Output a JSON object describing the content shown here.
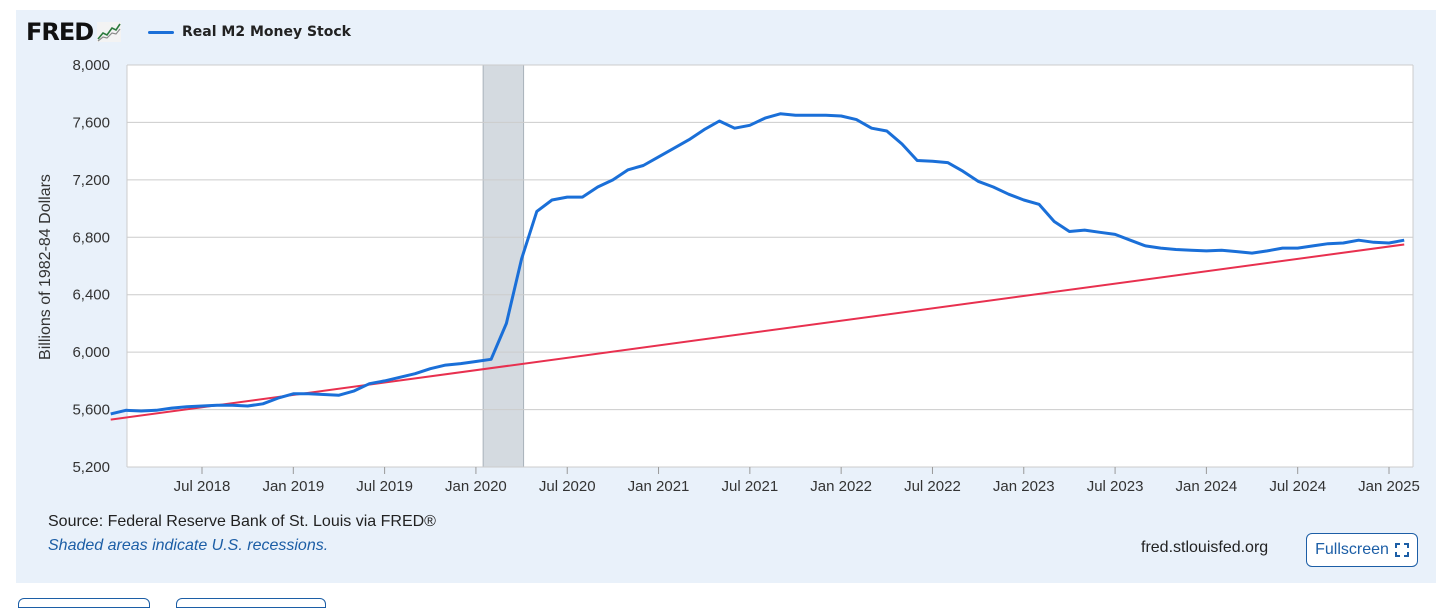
{
  "header": {
    "logo_text": "FRED",
    "legend_label": "Real M2 Money Stock"
  },
  "colors": {
    "series": "#1a6fd8",
    "trend": "#e8304f",
    "recession": "#d4dae0",
    "grid": "#cccccc",
    "panel": "#e9f1fa"
  },
  "footer": {
    "source": "Source: Federal Reserve Bank of St. Louis via FRED®",
    "note": "Shaded areas indicate U.S. recessions.",
    "site": "fred.stlouisfed.org",
    "fullscreen_label": "Fullscreen",
    "fullscreen_icon": "expand-icon"
  },
  "chart_data": {
    "type": "line",
    "ylabel": "Billions of 1982-84 Dollars",
    "ylim": [
      5200,
      8000
    ],
    "yticks": [
      5200,
      5600,
      6000,
      6400,
      6800,
      7200,
      7600,
      8000
    ],
    "ytick_labels": [
      "5,200",
      "5,600",
      "6,000",
      "6,400",
      "6,800",
      "7,200",
      "7,600",
      "8,000"
    ],
    "xlim": [
      "2018-01",
      "2025-02"
    ],
    "xticks": [
      "2018-07",
      "2019-01",
      "2019-07",
      "2020-01",
      "2020-07",
      "2021-01",
      "2021-07",
      "2022-01",
      "2022-07",
      "2023-01",
      "2023-07",
      "2024-01",
      "2024-07",
      "2025-01"
    ],
    "xtick_labels": [
      "Jul 2018",
      "Jan 2019",
      "Jul 2019",
      "Jan 2020",
      "Jul 2020",
      "Jan 2021",
      "Jul 2021",
      "Jan 2022",
      "Jul 2022",
      "Jan 2023",
      "Jul 2023",
      "Jan 2024",
      "Jul 2024",
      "Jan 2025"
    ],
    "grid": true,
    "recession": {
      "start": "2020-02",
      "end": "2020-04"
    },
    "trendline": {
      "start": {
        "x": "2018-01",
        "y": 5530
      },
      "end": {
        "x": "2025-02",
        "y": 6750
      }
    },
    "series": [
      {
        "x": [
          "2018-01",
          "2018-02",
          "2018-03",
          "2018-04",
          "2018-05",
          "2018-06",
          "2018-07",
          "2018-08",
          "2018-09",
          "2018-10",
          "2018-11",
          "2018-12",
          "2019-01",
          "2019-02",
          "2019-03",
          "2019-04",
          "2019-05",
          "2019-06",
          "2019-07",
          "2019-08",
          "2019-09",
          "2019-10",
          "2019-11",
          "2019-12",
          "2020-01",
          "2020-02",
          "2020-03",
          "2020-04",
          "2020-05",
          "2020-06",
          "2020-07",
          "2020-08",
          "2020-09",
          "2020-10",
          "2020-11",
          "2020-12",
          "2021-01",
          "2021-02",
          "2021-03",
          "2021-04",
          "2021-05",
          "2021-06",
          "2021-07",
          "2021-08",
          "2021-09",
          "2021-10",
          "2021-11",
          "2021-12",
          "2022-01",
          "2022-02",
          "2022-03",
          "2022-04",
          "2022-05",
          "2022-06",
          "2022-07",
          "2022-08",
          "2022-09",
          "2022-10",
          "2022-11",
          "2022-12",
          "2023-01",
          "2023-02",
          "2023-03",
          "2023-04",
          "2023-05",
          "2023-06",
          "2023-07",
          "2023-08",
          "2023-09",
          "2023-10",
          "2023-11",
          "2023-12",
          "2024-01",
          "2024-02",
          "2024-03",
          "2024-04",
          "2024-05",
          "2024-06",
          "2024-07",
          "2024-08",
          "2024-09",
          "2024-10",
          "2024-11",
          "2024-12",
          "2025-01",
          "2025-02"
        ],
        "values": [
          5570,
          5595,
          5590,
          5595,
          5610,
          5620,
          5625,
          5630,
          5630,
          5625,
          5640,
          5680,
          5710,
          5710,
          5705,
          5700,
          5730,
          5780,
          5800,
          5825,
          5850,
          5885,
          5910,
          5920,
          5935,
          5950,
          6200,
          6650,
          6980,
          7060,
          7080,
          7080,
          7150,
          7200,
          7270,
          7300,
          7360,
          7420,
          7480,
          7550,
          7610,
          7560,
          7580,
          7630,
          7660,
          7650,
          7650,
          7650,
          7645,
          7620,
          7560,
          7540,
          7450,
          7335,
          7330,
          7320,
          7260,
          7190,
          7150,
          7100,
          7060,
          7030,
          6910,
          6840,
          6850,
          6835,
          6820,
          6780,
          6740,
          6725,
          6715,
          6710,
          6705,
          6710,
          6700,
          6690,
          6705,
          6725,
          6725,
          6740,
          6755,
          6760,
          6780,
          6765,
          6760,
          6780
        ]
      }
    ]
  }
}
